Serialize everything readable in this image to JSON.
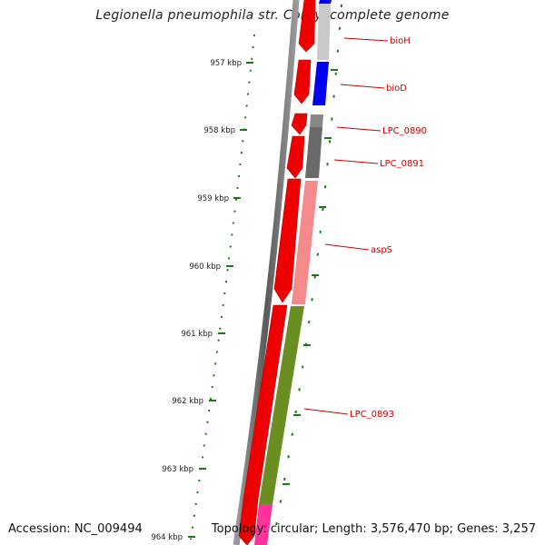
{
  "header": {
    "title": "Legionella pneumophila str. Corby, complete genome"
  },
  "footer": {
    "accession": "Accession: NC_009494",
    "summary": "Topology: circular; Length: 3,576,470 bp; Genes: 3,257"
  },
  "scale": {
    "ticks": [
      "957 kbp",
      "958 kbp",
      "959 kbp",
      "960 kbp",
      "961 kbp",
      "962 kbp",
      "963 kbp",
      "964 kbp"
    ],
    "tick_color": "#1a7a1a"
  },
  "genes": {
    "colors": {
      "strand_arrow": "#ee0000",
      "bioH": "#c8c8c8",
      "bioD": "#0000ee",
      "LPC_0890": "#888888",
      "LPC_0891": "#6a6a6a",
      "aspS": "#f48a8a",
      "LPC_0893": "#6b8e23",
      "next_gene": "#ff3399",
      "label": "#cc0000"
    },
    "labels": [
      "bioH",
      "bioD",
      "LPC_0890",
      "LPC_0891",
      "aspS",
      "LPC_0893"
    ]
  }
}
